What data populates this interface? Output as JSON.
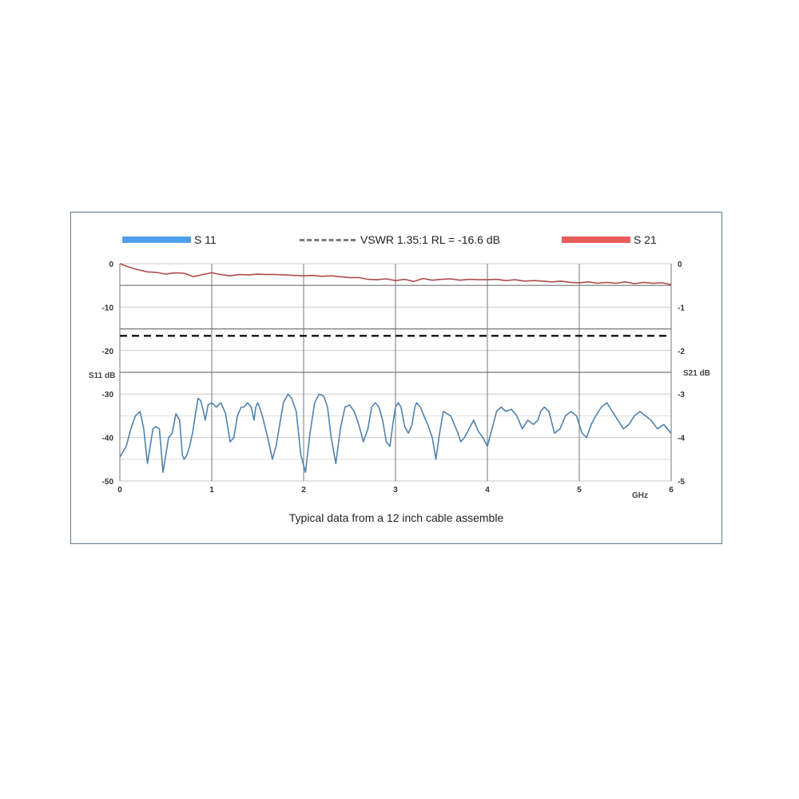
{
  "legend": {
    "s11": "S 11",
    "vswr": "VSWR 1.35:1 RL = -16.6 dB",
    "s21": "S 21"
  },
  "caption": "Typical data from a 12 inch cable assemble",
  "colors": {
    "s11_legend": "#4f9fe8",
    "s21_legend": "#e85c5c",
    "s11_line": "#4f82b0",
    "s21_line": "#b04a4a",
    "vswr_line": "#111111",
    "grid": "#8a8a8a",
    "frame": "#5a7a92"
  },
  "chart_data": {
    "type": "line",
    "xlabel": "GHz",
    "ylabel_left": "S11 dB",
    "ylabel_right": "S21 dB",
    "xlim": [
      0,
      6
    ],
    "ylim_left": [
      -50,
      0
    ],
    "ylim_right": [
      -5,
      0
    ],
    "x_ticks": [
      "0",
      "1",
      "2",
      "3",
      "4",
      "5",
      "6"
    ],
    "y_ticks_left": [
      "0",
      "-10",
      "-20",
      "-30",
      "-40",
      "-50"
    ],
    "y_ticks_right": [
      "0",
      "-1",
      "-2",
      "-3",
      "-4",
      "-5"
    ],
    "hline_vswr_db": -16.6,
    "series": [
      {
        "name": "S 11",
        "axis": "left",
        "x": [
          0.0,
          0.07,
          0.12,
          0.17,
          0.22,
          0.26,
          0.3,
          0.33,
          0.36,
          0.39,
          0.43,
          0.47,
          0.5,
          0.53,
          0.57,
          0.61,
          0.65,
          0.68,
          0.7,
          0.73,
          0.76,
          0.79,
          0.82,
          0.85,
          0.88,
          0.91,
          0.93,
          0.96,
          1.0,
          1.05,
          1.1,
          1.15,
          1.2,
          1.24,
          1.28,
          1.32,
          1.35,
          1.39,
          1.43,
          1.46,
          1.48,
          1.5,
          1.52,
          1.55,
          1.58,
          1.62,
          1.66,
          1.7,
          1.74,
          1.78,
          1.83,
          1.87,
          1.92,
          1.97,
          2.02,
          2.07,
          2.12,
          2.17,
          2.22,
          2.26,
          2.3,
          2.35,
          2.4,
          2.45,
          2.5,
          2.55,
          2.6,
          2.65,
          2.7,
          2.74,
          2.78,
          2.82,
          2.86,
          2.9,
          2.94,
          2.97,
          3.0,
          3.03,
          3.06,
          3.1,
          3.14,
          3.18,
          3.21,
          3.23,
          3.27,
          3.31,
          3.35,
          3.4,
          3.44,
          3.48,
          3.52,
          3.56,
          3.6,
          3.64,
          3.68,
          3.71,
          3.75,
          3.8,
          3.85,
          3.9,
          3.95,
          4.0,
          4.05,
          4.1,
          4.15,
          4.2,
          4.26,
          4.32,
          4.38,
          4.44,
          4.5,
          4.55,
          4.58,
          4.62,
          4.67,
          4.73,
          4.79,
          4.85,
          4.91,
          4.97,
          5.03,
          5.08,
          5.13,
          5.18,
          5.24,
          5.3,
          5.36,
          5.42,
          5.48,
          5.54,
          5.6,
          5.66,
          5.72,
          5.78,
          5.85,
          5.92,
          6.0
        ],
        "values": [
          -44.5,
          -42,
          -38,
          -35,
          -34,
          -38,
          -46,
          -42,
          -38,
          -37.5,
          -38,
          -48,
          -44,
          -40,
          -39,
          -34.5,
          -36,
          -44,
          -45,
          -44,
          -42,
          -39,
          -35,
          -31,
          -31.5,
          -34,
          -36,
          -32.5,
          -32,
          -33,
          -32,
          -34.5,
          -41,
          -40,
          -35,
          -33,
          -33,
          -32,
          -33,
          -36,
          -33,
          -32,
          -33,
          -35,
          -37.5,
          -41,
          -45,
          -42,
          -37,
          -32,
          -30,
          -31,
          -34,
          -44,
          -48,
          -39,
          -32,
          -30,
          -30.5,
          -33,
          -40,
          -46,
          -38,
          -33,
          -32.5,
          -34,
          -37,
          -41,
          -38,
          -33,
          -32,
          -33,
          -36,
          -41,
          -42,
          -37,
          -33,
          -32,
          -33,
          -37.5,
          -39,
          -37,
          -33,
          -32,
          -33,
          -35,
          -37,
          -40,
          -45,
          -39,
          -34,
          -34.5,
          -35,
          -37,
          -39,
          -41,
          -40,
          -38,
          -36,
          -38.5,
          -40,
          -42,
          -38,
          -34,
          -33,
          -34,
          -33.5,
          -35,
          -38,
          -36,
          -37,
          -36,
          -34,
          -33,
          -34,
          -39,
          -38,
          -35,
          -34,
          -35,
          -39,
          -40,
          -37,
          -35,
          -33,
          -32,
          -34,
          -36,
          -38,
          -37,
          -35,
          -34,
          -35,
          -36,
          -38,
          -37,
          -39
        ],
        "y_note": ""
      },
      {
        "name": "S 21",
        "axis": "right",
        "x": [
          0.0,
          0.1,
          0.2,
          0.3,
          0.4,
          0.5,
          0.6,
          0.7,
          0.8,
          0.9,
          1.0,
          1.1,
          1.2,
          1.3,
          1.4,
          1.5,
          1.6,
          1.7,
          1.8,
          1.9,
          2.0,
          2.1,
          2.2,
          2.3,
          2.4,
          2.5,
          2.6,
          2.7,
          2.8,
          2.9,
          3.0,
          3.1,
          3.2,
          3.3,
          3.4,
          3.5,
          3.6,
          3.7,
          3.8,
          3.9,
          4.0,
          4.1,
          4.2,
          4.3,
          4.4,
          4.5,
          4.6,
          4.7,
          4.8,
          4.9,
          5.0,
          5.1,
          5.2,
          5.3,
          5.4,
          5.5,
          5.6,
          5.7,
          5.8,
          5.9,
          6.0
        ],
        "values": [
          0.0,
          -0.08,
          -0.14,
          -0.19,
          -0.2,
          -0.24,
          -0.21,
          -0.22,
          -0.3,
          -0.25,
          -0.21,
          -0.25,
          -0.28,
          -0.25,
          -0.26,
          -0.24,
          -0.25,
          -0.25,
          -0.26,
          -0.27,
          -0.28,
          -0.27,
          -0.29,
          -0.28,
          -0.3,
          -0.32,
          -0.32,
          -0.36,
          -0.37,
          -0.35,
          -0.39,
          -0.36,
          -0.41,
          -0.34,
          -0.38,
          -0.36,
          -0.35,
          -0.38,
          -0.36,
          -0.37,
          -0.37,
          -0.36,
          -0.39,
          -0.37,
          -0.4,
          -0.39,
          -0.4,
          -0.42,
          -0.4,
          -0.43,
          -0.44,
          -0.42,
          -0.45,
          -0.43,
          -0.45,
          -0.42,
          -0.46,
          -0.43,
          -0.45,
          -0.44,
          -0.48
        ]
      }
    ]
  }
}
